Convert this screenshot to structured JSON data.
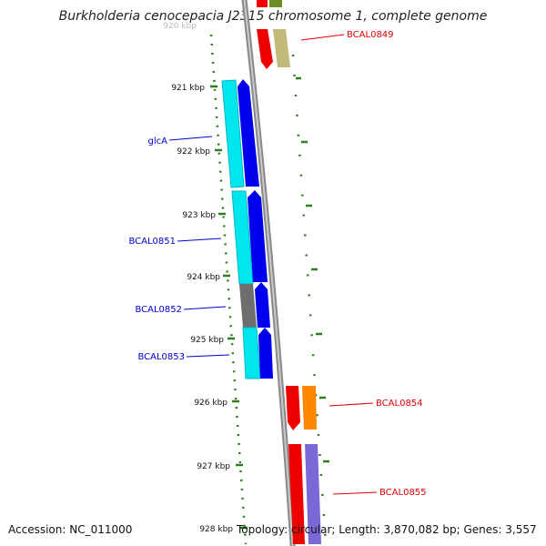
{
  "title": "Burkholderia cenocepacia J2315 chromosome 1, complete genome",
  "accession": "Accession: NC_011000",
  "topology": "Topology: circular; Length: 3,870,082 bp; Genes: 3,557",
  "ruler": {
    "clipped_label": "920 kbp",
    "labels": [
      "921 kbp",
      "922 kbp",
      "923 kbp",
      "924 kbp",
      "925 kbp",
      "926 kbp",
      "927 kbp",
      "928 kbp"
    ]
  },
  "genes": {
    "left": [
      "glcA",
      "BCAL0851",
      "BCAL0852",
      "BCAL0853"
    ],
    "right": [
      "BCAL0849",
      "BCAL0854",
      "BCAL0855"
    ]
  },
  "colors": {
    "forward_label": "#0000cc",
    "reverse_label": "#dd0000",
    "tick": "#2e7d1e",
    "backbone": "#808080",
    "cyan": "#00e6ee",
    "blue": "#0000ee",
    "gray": "#6e6e6e",
    "red": "#ee0000",
    "orange": "#ff8800",
    "khaki": "#c2b97a",
    "lavender": "#7b68d6",
    "olive": "#6b8e23"
  }
}
